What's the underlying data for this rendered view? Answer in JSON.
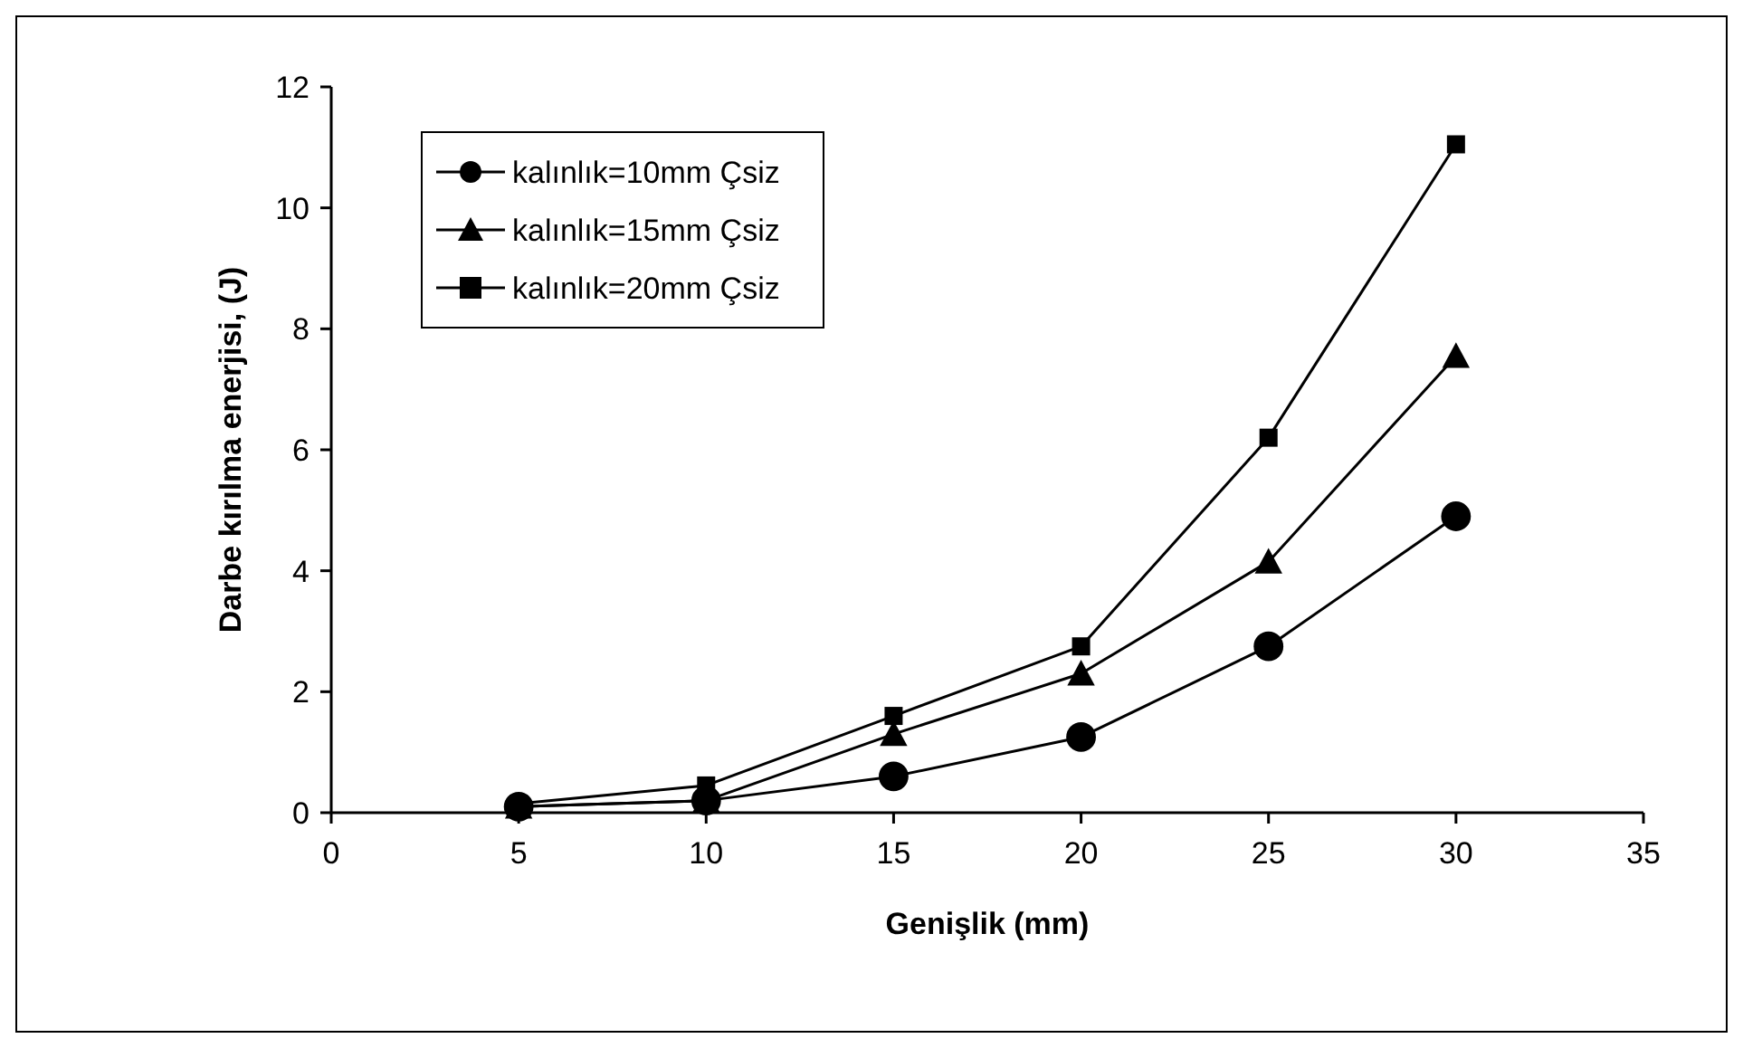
{
  "chart_data": {
    "type": "line",
    "xlabel": "Genişlik (mm)",
    "ylabel": "Darbe kırılma enerjisi, (J)",
    "x": [
      5,
      10,
      15,
      20,
      25,
      30
    ],
    "xlim": [
      0,
      35
    ],
    "xticks": [
      0,
      5,
      10,
      15,
      20,
      25,
      30,
      35
    ],
    "ylim": [
      0,
      12
    ],
    "yticks": [
      0,
      2,
      4,
      6,
      8,
      10,
      12
    ],
    "grid": false,
    "legend": "top left",
    "line_style": "solid",
    "series": [
      {
        "name": "kalınlık=10mm Çsiz",
        "color": "#000000",
        "marker": "circle",
        "values": [
          0.1,
          0.2,
          0.6,
          1.25,
          2.75,
          4.9
        ]
      },
      {
        "name": "kalınlık=15mm Çsiz",
        "color": "#000000",
        "marker": "triangle",
        "values": [
          0.1,
          0.2,
          1.3,
          2.3,
          4.15,
          7.55
        ]
      },
      {
        "name": "kalınlık=20mm Çsiz",
        "color": "#000000",
        "marker": "square",
        "values": [
          0.15,
          0.45,
          1.6,
          2.75,
          6.2,
          11.05
        ]
      }
    ]
  }
}
